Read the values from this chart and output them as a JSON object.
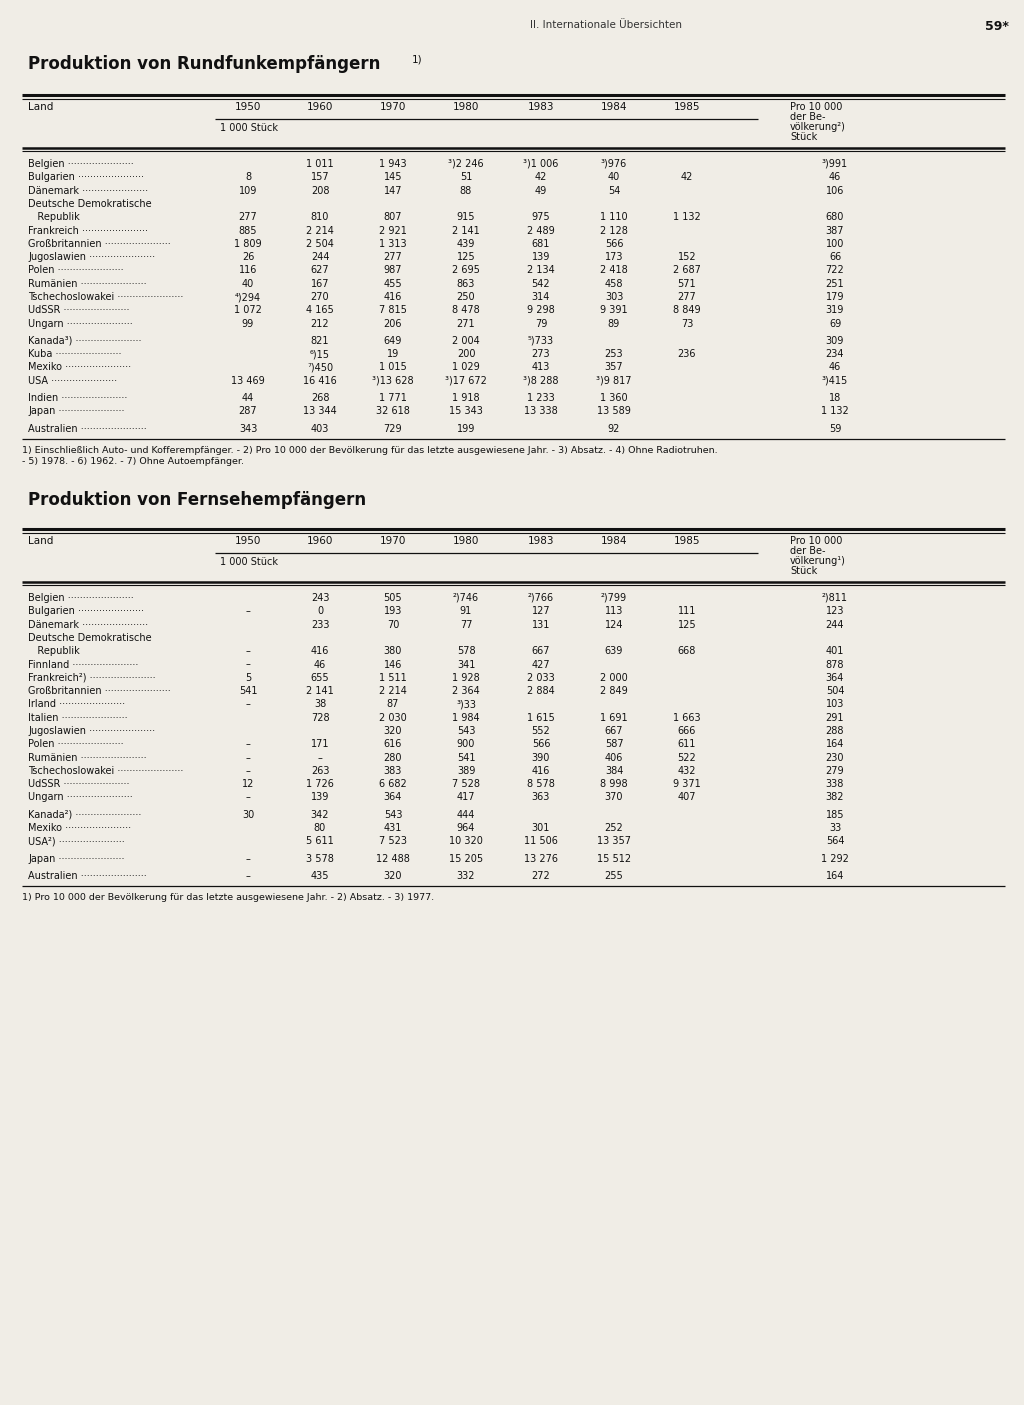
{
  "page_header_left": "II. Internationale Übersichten",
  "page_header_right": "59*",
  "table1_title": "Produktion von Rundfunkempfängern",
  "table1_title_sup": "1)",
  "table2_title": "Produktion von Fernsehempfängern",
  "table1_footnote_line1": "1) Einschließlich Auto- und Kofferempfänger. - 2) Pro 10 000 der Bevölkerung für das letzte ausgewiesene Jahr. - 3) Absatz. - 4) Ohne Radiotruhen.",
  "table1_footnote_line2": "- 5) 1978. - 6) 1962. - 7) Ohne Autoempfänger.",
  "table2_footnote": "1) Pro 10 000 der Bevölkerung für das letzte ausgewiesene Jahr. - 2) Absatz. - 3) 1977.",
  "bg_color": "#f0ede6"
}
